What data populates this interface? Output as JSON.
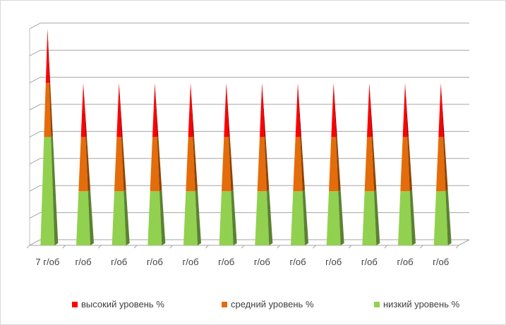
{
  "chart_data": {
    "type": "bar",
    "subtype": "stacked-3d-pyramid",
    "title": "",
    "xlabel": "",
    "ylabel": "",
    "y_tick_labels_shown": false,
    "grid": true,
    "legend_position": "bottom",
    "categories": [
      "7 г/об",
      "г/об",
      "г/об",
      "г/об",
      "г/об",
      "г/об",
      "г/об",
      "г/об",
      "г/об",
      "г/об",
      "г/об",
      "г/об"
    ],
    "ylim": [
      0,
      8
    ],
    "series": [
      {
        "name": "низкий уровень %",
        "color": "#92d050",
        "values": [
          4,
          2,
          2,
          2,
          2,
          2,
          2,
          2,
          2,
          2,
          2,
          2
        ]
      },
      {
        "name": "средний уровень %",
        "color": "#e46c0a",
        "values": [
          2,
          2,
          2,
          2,
          2,
          2,
          2,
          2,
          2,
          2,
          2,
          2
        ]
      },
      {
        "name": "высокий уровень %",
        "color": "#ff0000",
        "values": [
          2,
          2,
          2,
          2,
          2,
          2,
          2,
          2,
          2,
          2,
          2,
          2
        ]
      }
    ],
    "legend_order": [
      "высокий уровень %",
      "средний уровень %",
      "низкий уровень %"
    ]
  }
}
